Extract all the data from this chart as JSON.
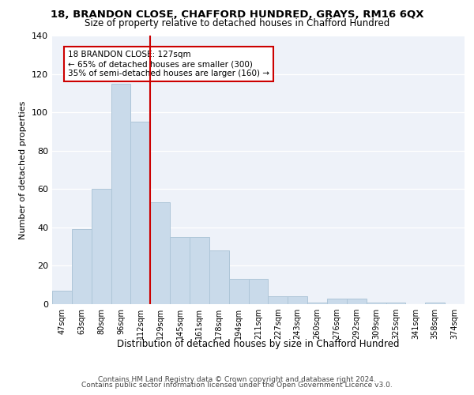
{
  "title1": "18, BRANDON CLOSE, CHAFFORD HUNDRED, GRAYS, RM16 6QX",
  "title2": "Size of property relative to detached houses in Chafford Hundred",
  "xlabel": "Distribution of detached houses by size in Chafford Hundred",
  "ylabel": "Number of detached properties",
  "bin_labels": [
    "47sqm",
    "63sqm",
    "80sqm",
    "96sqm",
    "112sqm",
    "129sqm",
    "145sqm",
    "161sqm",
    "178sqm",
    "194sqm",
    "211sqm",
    "227sqm",
    "243sqm",
    "260sqm",
    "276sqm",
    "292sqm",
    "309sqm",
    "325sqm",
    "341sqm",
    "358sqm",
    "374sqm"
  ],
  "bar_heights": [
    7,
    39,
    60,
    115,
    95,
    53,
    35,
    35,
    28,
    13,
    13,
    4,
    4,
    1,
    3,
    3,
    1,
    1,
    0,
    1,
    0
  ],
  "bar_color": "#c9daea",
  "bar_edge_color": "#aec6d8",
  "vline_x": 4.5,
  "vline_color": "#cc0000",
  "annotation_text": "18 BRANDON CLOSE: 127sqm\n← 65% of detached houses are smaller (300)\n35% of semi-detached houses are larger (160) →",
  "annotation_box_color": "#ffffff",
  "annotation_box_edge_color": "#cc0000",
  "ylim": [
    0,
    140
  ],
  "yticks": [
    0,
    20,
    40,
    60,
    80,
    100,
    120,
    140
  ],
  "footer1": "Contains HM Land Registry data © Crown copyright and database right 2024.",
  "footer2": "Contains public sector information licensed under the Open Government Licence v3.0.",
  "bg_color": "#eef2f9",
  "grid_color": "#ffffff",
  "fig_bg": "#ffffff"
}
